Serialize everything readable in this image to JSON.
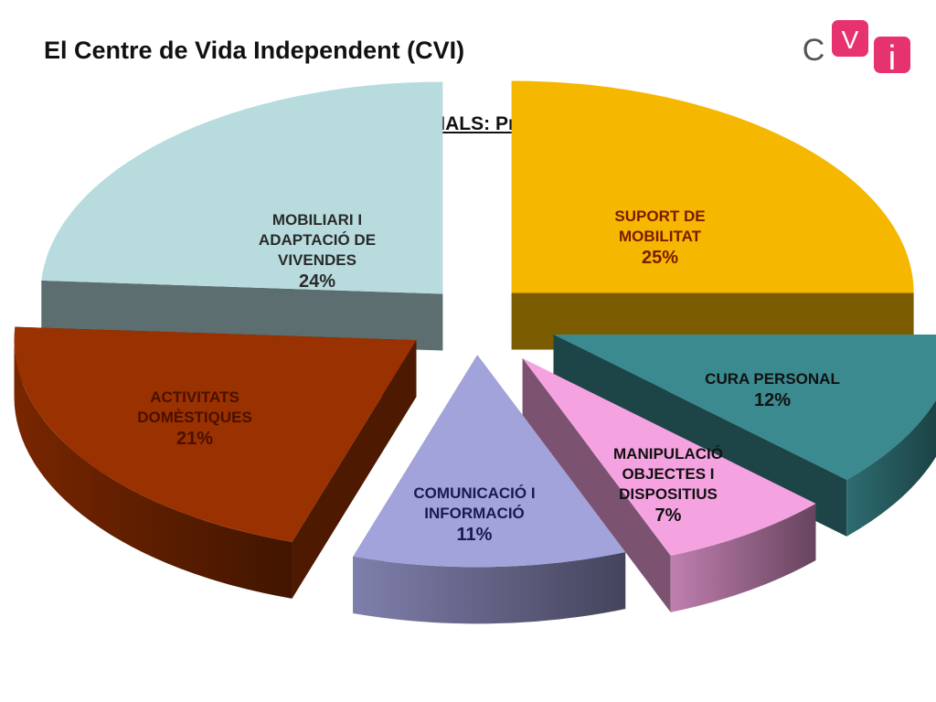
{
  "page": {
    "title": "El Centre de Vida Independent (CVI)"
  },
  "logo": {
    "letters": [
      "C",
      "V",
      "i"
    ],
    "accent": "#e6326e"
  },
  "chart_data": {
    "type": "pie",
    "title": "VISITES  ASSISTENCIALS:  Productes de Suport",
    "three_d": true,
    "exploded": true,
    "legend": "none",
    "slices": [
      {
        "lines": [
          "SUPORT DE",
          "MOBILITAT"
        ],
        "pct_label": "25%",
        "value": 25,
        "color": "#f5b700"
      },
      {
        "lines": [
          "CURA PERSONAL"
        ],
        "pct_label": "12%",
        "value": 12,
        "color": "#3a8a90"
      },
      {
        "lines": [
          "MANIPULACIÓ",
          "OBJECTES I",
          "DISPOSITIUS"
        ],
        "pct_label": "7%",
        "value": 7,
        "color": "#f5a3e0"
      },
      {
        "lines": [
          "COMUNICACIÓ I",
          "INFORMACIÓ"
        ],
        "pct_label": "11%",
        "value": 11,
        "color": "#a3a3dc"
      },
      {
        "lines": [
          "ACTIVITATS",
          "DOMÈSTIQUES"
        ],
        "pct_label": "21%",
        "value": 21,
        "color": "#9a3100"
      },
      {
        "lines": [
          "MOBILIARI I",
          "ADAPTACIÓ DE",
          "VIVENDES"
        ],
        "pct_label": "24%",
        "value": 24,
        "color": "#b8dcde"
      }
    ]
  }
}
